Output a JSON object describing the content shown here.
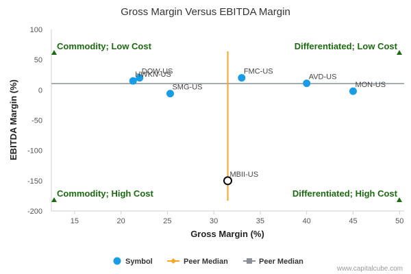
{
  "chart_data": {
    "type": "scatter",
    "title": "Gross Margin Versus EBITDA Margin",
    "xlabel": "Gross Margin (%)",
    "ylabel": "EBITDA Margin (%)",
    "xlim": [
      12.5,
      50.5
    ],
    "ylim": [
      -200,
      100
    ],
    "x_ticks": [
      15,
      20,
      25,
      30,
      35,
      40,
      45,
      50
    ],
    "y_ticks": [
      100,
      50,
      0,
      -50,
      -100,
      -150,
      -200
    ],
    "points": [
      {
        "label": "DOW-US",
        "x": 22.0,
        "y": 20
      },
      {
        "label": "HWKN-US",
        "x": 21.3,
        "y": 15
      },
      {
        "label": "SMG-US",
        "x": 25.3,
        "y": -6
      },
      {
        "label": "FMC-US",
        "x": 33.0,
        "y": 20
      },
      {
        "label": "AVD-US",
        "x": 40.0,
        "y": 11
      },
      {
        "label": "MON-US",
        "x": 45.0,
        "y": -2
      },
      {
        "label": "MBII-US",
        "x": 31.5,
        "y": -150,
        "highlight": true
      }
    ],
    "peer_median_x": 31.5,
    "peer_median_y": 10.5,
    "quadrants": {
      "top_left": "Commodity; Low Cost",
      "top_right": "Differentiated; Low Cost",
      "bottom_left": "Commodity; High Cost",
      "bottom_right": "Differentiated; High Cost"
    },
    "legend": [
      {
        "label": "Symbol",
        "color": "#1a9be6",
        "marker": "circle"
      },
      {
        "label": "Peer Median",
        "color": "#f5a623",
        "marker": "diamond"
      },
      {
        "label": "Peer Median",
        "color": "#8a8f99",
        "marker": "square"
      }
    ],
    "legend_position": "bottom",
    "grid": false
  },
  "credit": "www.capitalcube.com",
  "colors": {
    "point": "#1a9be6",
    "highlight_fill": "#ffffff",
    "highlight_stroke": "#000000",
    "median_vertical": "#f5a623",
    "median_horizontal": "#8a8f99",
    "quadrant_text": "#1a6b0f",
    "quadrant_marker": "#1a6b0f"
  }
}
